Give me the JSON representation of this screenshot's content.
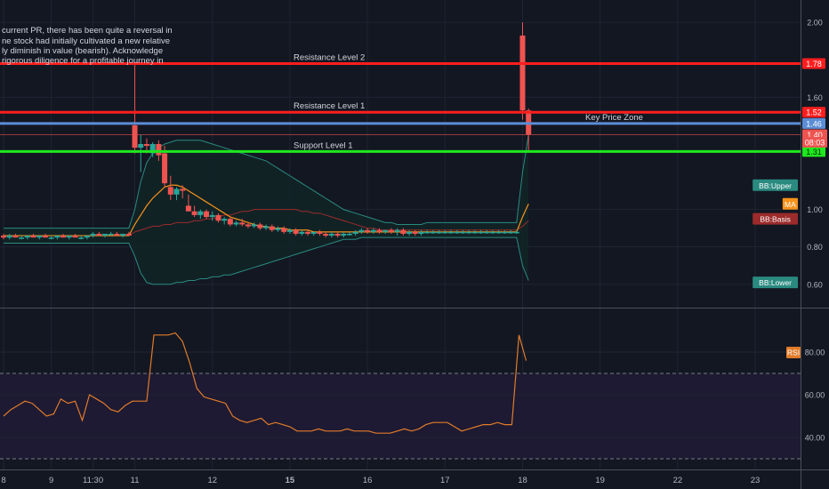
{
  "colors": {
    "background": "#131722",
    "grid": "#1f2433",
    "up": "#26a69a",
    "down": "#ef5350",
    "resistance": "#ff1e1e",
    "support": "#1ee81e",
    "key_zone": "#5b8dd6",
    "ma": "#f7931a",
    "bb_basis": "#9c2b2b",
    "bb_band": "#2a8a80",
    "bb_fill": "#122426",
    "rsi_line": "#e07b2a",
    "rsi_band": "#1e1a33",
    "axis_text": "#b2b5be",
    "label_text": "#d1d4dc"
  },
  "annotation_lines": [
    "current PR, there has been quite a reversal in",
    "ne stock had initially cultivated a new relative",
    "ly diminish in value (bearish). Acknowledge",
    "rigorous diligence for a profitable journey in"
  ],
  "chart_data": [
    {
      "type": "candlestick",
      "title": "",
      "price_axis_ticks": [
        "2.00",
        "1.60",
        "1.00",
        "0.80",
        "0.60"
      ],
      "price_axis_tick_values": [
        2.0,
        1.6,
        1.0,
        0.8,
        0.6
      ],
      "time_axis_labels": [
        "8",
        "9",
        "11:30",
        "11",
        "12",
        "15",
        "16",
        "17",
        "18",
        "19",
        "22",
        "23"
      ],
      "time_axis_label_bars": [
        0,
        8,
        15,
        22,
        35,
        48,
        61,
        74,
        87,
        100,
        113,
        126
      ],
      "ylim": [
        0.48,
        2.12
      ],
      "bar_range": [
        0,
        133
      ],
      "candles": [
        {
          "o": 0.86,
          "h": 0.87,
          "l": 0.84,
          "c": 0.85
        },
        {
          "o": 0.85,
          "h": 0.87,
          "l": 0.84,
          "c": 0.86
        },
        {
          "o": 0.86,
          "h": 0.87,
          "l": 0.85,
          "c": 0.85
        },
        {
          "o": 0.85,
          "h": 0.86,
          "l": 0.84,
          "c": 0.85
        },
        {
          "o": 0.85,
          "h": 0.86,
          "l": 0.84,
          "c": 0.86
        },
        {
          "o": 0.86,
          "h": 0.87,
          "l": 0.85,
          "c": 0.85
        },
        {
          "o": 0.85,
          "h": 0.86,
          "l": 0.84,
          "c": 0.86
        },
        {
          "o": 0.86,
          "h": 0.87,
          "l": 0.85,
          "c": 0.85
        },
        {
          "o": 0.85,
          "h": 0.86,
          "l": 0.84,
          "c": 0.85
        },
        {
          "o": 0.85,
          "h": 0.86,
          "l": 0.84,
          "c": 0.86
        },
        {
          "o": 0.86,
          "h": 0.87,
          "l": 0.85,
          "c": 0.85
        },
        {
          "o": 0.85,
          "h": 0.86,
          "l": 0.84,
          "c": 0.86
        },
        {
          "o": 0.86,
          "h": 0.87,
          "l": 0.85,
          "c": 0.85
        },
        {
          "o": 0.85,
          "h": 0.86,
          "l": 0.84,
          "c": 0.85
        },
        {
          "o": 0.85,
          "h": 0.86,
          "l": 0.84,
          "c": 0.86
        },
        {
          "o": 0.86,
          "h": 0.88,
          "l": 0.85,
          "c": 0.87
        },
        {
          "o": 0.87,
          "h": 0.88,
          "l": 0.86,
          "c": 0.86
        },
        {
          "o": 0.86,
          "h": 0.87,
          "l": 0.85,
          "c": 0.87
        },
        {
          "o": 0.87,
          "h": 0.88,
          "l": 0.86,
          "c": 0.87
        },
        {
          "o": 0.87,
          "h": 0.88,
          "l": 0.86,
          "c": 0.86
        },
        {
          "o": 0.86,
          "h": 0.87,
          "l": 0.85,
          "c": 0.87
        },
        {
          "o": 0.87,
          "h": 0.88,
          "l": 0.86,
          "c": 0.86
        },
        {
          "o": 1.45,
          "h": 1.78,
          "l": 1.3,
          "c": 1.33
        },
        {
          "o": 1.33,
          "h": 1.4,
          "l": 1.2,
          "c": 1.35
        },
        {
          "o": 1.35,
          "h": 1.38,
          "l": 1.3,
          "c": 1.34
        },
        {
          "o": 1.3,
          "h": 1.36,
          "l": 1.28,
          "c": 1.35
        },
        {
          "o": 1.35,
          "h": 1.37,
          "l": 1.26,
          "c": 1.29
        },
        {
          "o": 1.3,
          "h": 1.34,
          "l": 1.12,
          "c": 1.14
        },
        {
          "o": 1.12,
          "h": 1.18,
          "l": 1.05,
          "c": 1.08
        },
        {
          "o": 1.08,
          "h": 1.12,
          "l": 1.05,
          "c": 1.11
        },
        {
          "o": 1.11,
          "h": 1.13,
          "l": 1.06,
          "c": 1.1
        },
        {
          "o": 1.02,
          "h": 1.08,
          "l": 0.99,
          "c": 0.99
        },
        {
          "o": 0.99,
          "h": 1.02,
          "l": 0.96,
          "c": 0.97
        },
        {
          "o": 0.97,
          "h": 1.0,
          "l": 0.95,
          "c": 0.99
        },
        {
          "o": 0.99,
          "h": 1.0,
          "l": 0.95,
          "c": 0.96
        },
        {
          "o": 0.96,
          "h": 0.99,
          "l": 0.94,
          "c": 0.97
        },
        {
          "o": 0.97,
          "h": 0.98,
          "l": 0.93,
          "c": 0.94
        },
        {
          "o": 0.94,
          "h": 0.96,
          "l": 0.92,
          "c": 0.95
        },
        {
          "o": 0.95,
          "h": 0.96,
          "l": 0.91,
          "c": 0.92
        },
        {
          "o": 0.92,
          "h": 0.94,
          "l": 0.91,
          "c": 0.93
        },
        {
          "o": 0.93,
          "h": 0.95,
          "l": 0.91,
          "c": 0.92
        },
        {
          "o": 0.92,
          "h": 0.93,
          "l": 0.9,
          "c": 0.91
        },
        {
          "o": 0.91,
          "h": 0.93,
          "l": 0.9,
          "c": 0.92
        },
        {
          "o": 0.92,
          "h": 0.93,
          "l": 0.89,
          "c": 0.9
        },
        {
          "o": 0.9,
          "h": 0.92,
          "l": 0.89,
          "c": 0.91
        },
        {
          "o": 0.91,
          "h": 0.92,
          "l": 0.88,
          "c": 0.89
        },
        {
          "o": 0.89,
          "h": 0.91,
          "l": 0.88,
          "c": 0.9
        },
        {
          "o": 0.9,
          "h": 0.91,
          "l": 0.87,
          "c": 0.88
        },
        {
          "o": 0.88,
          "h": 0.9,
          "l": 0.87,
          "c": 0.89
        },
        {
          "o": 0.89,
          "h": 0.9,
          "l": 0.86,
          "c": 0.87
        },
        {
          "o": 0.87,
          "h": 0.89,
          "l": 0.86,
          "c": 0.88
        },
        {
          "o": 0.88,
          "h": 0.89,
          "l": 0.86,
          "c": 0.87
        },
        {
          "o": 0.87,
          "h": 0.88,
          "l": 0.86,
          "c": 0.88
        },
        {
          "o": 0.88,
          "h": 0.89,
          "l": 0.86,
          "c": 0.87
        },
        {
          "o": 0.87,
          "h": 0.88,
          "l": 0.85,
          "c": 0.86
        },
        {
          "o": 0.86,
          "h": 0.88,
          "l": 0.85,
          "c": 0.87
        },
        {
          "o": 0.87,
          "h": 0.88,
          "l": 0.85,
          "c": 0.86
        },
        {
          "o": 0.86,
          "h": 0.88,
          "l": 0.85,
          "c": 0.87
        },
        {
          "o": 0.87,
          "h": 0.88,
          "l": 0.86,
          "c": 0.87
        },
        {
          "o": 0.87,
          "h": 0.89,
          "l": 0.86,
          "c": 0.88
        },
        {
          "o": 0.88,
          "h": 0.9,
          "l": 0.87,
          "c": 0.89
        },
        {
          "o": 0.89,
          "h": 0.9,
          "l": 0.87,
          "c": 0.88
        },
        {
          "o": 0.88,
          "h": 0.9,
          "l": 0.87,
          "c": 0.89
        },
        {
          "o": 0.89,
          "h": 0.9,
          "l": 0.87,
          "c": 0.88
        },
        {
          "o": 0.88,
          "h": 0.89,
          "l": 0.87,
          "c": 0.89
        },
        {
          "o": 0.89,
          "h": 0.9,
          "l": 0.87,
          "c": 0.88
        },
        {
          "o": 0.88,
          "h": 0.9,
          "l": 0.86,
          "c": 0.89
        },
        {
          "o": 0.89,
          "h": 0.9,
          "l": 0.86,
          "c": 0.87
        },
        {
          "o": 0.87,
          "h": 0.89,
          "l": 0.86,
          "c": 0.88
        },
        {
          "o": 0.88,
          "h": 0.89,
          "l": 0.86,
          "c": 0.87
        },
        {
          "o": 0.87,
          "h": 0.89,
          "l": 0.86,
          "c": 0.88
        },
        {
          "o": 0.88,
          "h": 0.89,
          "l": 0.87,
          "c": 0.88
        },
        {
          "o": 0.88,
          "h": 0.89,
          "l": 0.87,
          "c": 0.88
        },
        {
          "o": 0.88,
          "h": 0.89,
          "l": 0.87,
          "c": 0.88
        },
        {
          "o": 0.88,
          "h": 0.89,
          "l": 0.87,
          "c": 0.88
        },
        {
          "o": 0.88,
          "h": 0.89,
          "l": 0.87,
          "c": 0.88
        },
        {
          "o": 0.88,
          "h": 0.89,
          "l": 0.87,
          "c": 0.88
        },
        {
          "o": 0.88,
          "h": 0.89,
          "l": 0.87,
          "c": 0.88
        },
        {
          "o": 0.88,
          "h": 0.89,
          "l": 0.87,
          "c": 0.88
        },
        {
          "o": 0.88,
          "h": 0.89,
          "l": 0.87,
          "c": 0.88
        },
        {
          "o": 0.88,
          "h": 0.89,
          "l": 0.87,
          "c": 0.88
        },
        {
          "o": 0.88,
          "h": 0.89,
          "l": 0.87,
          "c": 0.88
        },
        {
          "o": 0.88,
          "h": 0.89,
          "l": 0.87,
          "c": 0.88
        },
        {
          "o": 0.88,
          "h": 0.89,
          "l": 0.87,
          "c": 0.88
        },
        {
          "o": 0.88,
          "h": 0.89,
          "l": 0.87,
          "c": 0.88
        },
        {
          "o": 0.88,
          "h": 0.89,
          "l": 0.87,
          "c": 0.88
        },
        {
          "o": 0.88,
          "h": 0.89,
          "l": 0.87,
          "c": 0.88
        },
        {
          "o": 1.93,
          "h": 2.0,
          "l": 1.48,
          "c": 1.53
        },
        {
          "o": 1.53,
          "h": 1.54,
          "l": 1.31,
          "c": 1.4
        }
      ],
      "bb_upper": [
        0.9,
        0.9,
        0.9,
        0.9,
        0.9,
        0.9,
        0.9,
        0.9,
        0.9,
        0.9,
        0.9,
        0.9,
        0.9,
        0.9,
        0.9,
        0.9,
        0.9,
        0.9,
        0.9,
        0.9,
        0.9,
        0.9,
        1.0,
        1.15,
        1.25,
        1.3,
        1.33,
        1.35,
        1.36,
        1.37,
        1.37,
        1.37,
        1.37,
        1.37,
        1.36,
        1.35,
        1.34,
        1.33,
        1.32,
        1.31,
        1.3,
        1.29,
        1.28,
        1.27,
        1.26,
        1.24,
        1.22,
        1.2,
        1.18,
        1.16,
        1.14,
        1.12,
        1.1,
        1.08,
        1.06,
        1.04,
        1.02,
        1.0,
        0.99,
        0.98,
        0.97,
        0.96,
        0.95,
        0.94,
        0.93,
        0.93,
        0.92,
        0.92,
        0.92,
        0.92,
        0.92,
        0.93,
        0.93,
        0.93,
        0.93,
        0.93,
        0.93,
        0.93,
        0.93,
        0.93,
        0.93,
        0.93,
        0.93,
        0.93,
        0.93,
        0.93,
        0.93,
        1.2,
        1.4
      ],
      "bb_basis": [
        0.86,
        0.86,
        0.86,
        0.86,
        0.86,
        0.86,
        0.86,
        0.86,
        0.86,
        0.86,
        0.86,
        0.86,
        0.86,
        0.86,
        0.86,
        0.86,
        0.86,
        0.86,
        0.86,
        0.86,
        0.86,
        0.86,
        0.88,
        0.89,
        0.9,
        0.91,
        0.91,
        0.92,
        0.92,
        0.93,
        0.93,
        0.93,
        0.94,
        0.94,
        0.95,
        0.95,
        0.96,
        0.97,
        0.97,
        0.98,
        0.99,
        0.99,
        1.0,
        1.0,
        1.0,
        1.0,
        1.0,
        1.0,
        1.0,
        1.0,
        0.99,
        0.99,
        0.98,
        0.98,
        0.97,
        0.96,
        0.95,
        0.94,
        0.93,
        0.92,
        0.91,
        0.9,
        0.9,
        0.89,
        0.89,
        0.89,
        0.89,
        0.89,
        0.89,
        0.89,
        0.89,
        0.89,
        0.89,
        0.89,
        0.89,
        0.89,
        0.89,
        0.89,
        0.89,
        0.89,
        0.89,
        0.89,
        0.89,
        0.89,
        0.89,
        0.89,
        0.89,
        0.91,
        0.94
      ],
      "bb_lower": [
        0.82,
        0.82,
        0.82,
        0.82,
        0.82,
        0.82,
        0.82,
        0.82,
        0.82,
        0.82,
        0.82,
        0.82,
        0.82,
        0.82,
        0.82,
        0.82,
        0.82,
        0.82,
        0.82,
        0.82,
        0.82,
        0.82,
        0.75,
        0.66,
        0.61,
        0.6,
        0.6,
        0.6,
        0.6,
        0.61,
        0.61,
        0.62,
        0.62,
        0.63,
        0.63,
        0.64,
        0.64,
        0.65,
        0.65,
        0.66,
        0.67,
        0.68,
        0.69,
        0.7,
        0.71,
        0.72,
        0.73,
        0.74,
        0.75,
        0.76,
        0.77,
        0.78,
        0.79,
        0.8,
        0.81,
        0.82,
        0.83,
        0.84,
        0.84,
        0.84,
        0.85,
        0.85,
        0.85,
        0.85,
        0.85,
        0.85,
        0.85,
        0.85,
        0.85,
        0.85,
        0.85,
        0.85,
        0.85,
        0.85,
        0.85,
        0.85,
        0.85,
        0.85,
        0.85,
        0.85,
        0.85,
        0.85,
        0.85,
        0.85,
        0.85,
        0.85,
        0.85,
        0.7,
        0.62
      ],
      "ma": [
        0.86,
        0.86,
        0.86,
        0.86,
        0.86,
        0.86,
        0.86,
        0.86,
        0.86,
        0.86,
        0.86,
        0.86,
        0.86,
        0.86,
        0.86,
        0.86,
        0.86,
        0.86,
        0.86,
        0.86,
        0.86,
        0.86,
        0.92,
        0.97,
        1.02,
        1.06,
        1.09,
        1.12,
        1.13,
        1.13,
        1.12,
        1.1,
        1.08,
        1.06,
        1.04,
        1.02,
        1.0,
        0.98,
        0.96,
        0.95,
        0.94,
        0.93,
        0.92,
        0.91,
        0.91,
        0.9,
        0.9,
        0.9,
        0.89,
        0.89,
        0.89,
        0.89,
        0.88,
        0.88,
        0.88,
        0.88,
        0.88,
        0.88,
        0.88,
        0.88,
        0.88,
        0.88,
        0.88,
        0.88,
        0.88,
        0.88,
        0.88,
        0.88,
        0.88,
        0.88,
        0.88,
        0.88,
        0.88,
        0.88,
        0.88,
        0.88,
        0.88,
        0.88,
        0.88,
        0.88,
        0.88,
        0.88,
        0.88,
        0.88,
        0.88,
        0.88,
        0.88,
        0.96,
        1.03
      ],
      "levels": [
        {
          "name": "Resistance Level 2",
          "value": 1.78,
          "color": "#ff1e1e",
          "label": "1.78"
        },
        {
          "name": "Resistance Level 1",
          "value": 1.52,
          "color": "#ff1e1e",
          "label": "1.52"
        },
        {
          "name": "Key Price Zone",
          "value": 1.46,
          "color": "#5b8dd6",
          "label": "1.46"
        },
        {
          "name": "Support Level 1",
          "value": 1.31,
          "color": "#1ee81e",
          "label": "1.31"
        }
      ],
      "extra_price_labels": [
        {
          "text": "1.40",
          "value": 1.4,
          "color": "#ef5350"
        },
        {
          "text": "08:03",
          "value": 1.36,
          "color": "#ef5350"
        }
      ],
      "indicator_labels": [
        {
          "text": "BB:Upper",
          "value": 1.13,
          "color": "#2a8a80"
        },
        {
          "text": "MA",
          "value": 1.03,
          "color": "#f7931a"
        },
        {
          "text": "BB:Basis",
          "value": 0.95,
          "color": "#9c2b2b"
        },
        {
          "text": "BB:Lower",
          "value": 0.61,
          "color": "#2a8a80"
        }
      ]
    },
    {
      "type": "line",
      "title": "",
      "series": [
        {
          "name": "RSI",
          "values": [
            50,
            53,
            55,
            57,
            56,
            53,
            50,
            51,
            58,
            56,
            57,
            48,
            60,
            58,
            56,
            53,
            52,
            55,
            57,
            57,
            57,
            88,
            88,
            88,
            89,
            85,
            75,
            63,
            59,
            58,
            57,
            56,
            50,
            48,
            47,
            48,
            49,
            46,
            47,
            46,
            45,
            43,
            43,
            43,
            44,
            43,
            43,
            43,
            44,
            43,
            43,
            43,
            42,
            42,
            42,
            43,
            44,
            43,
            44,
            46,
            47,
            47,
            47,
            45,
            43,
            44,
            45,
            46,
            46,
            47,
            46,
            46,
            88,
            76
          ]
        }
      ],
      "axis_ticks": [
        "80.00",
        "60.00",
        "40.00"
      ],
      "axis_tick_values": [
        80,
        60,
        40
      ],
      "overbought": 70,
      "oversold": 30,
      "ylim": [
        25,
        100
      ],
      "bar_range": [
        0,
        133
      ],
      "rsi_start_bar": 0,
      "rsi_step": 1.2
    }
  ]
}
